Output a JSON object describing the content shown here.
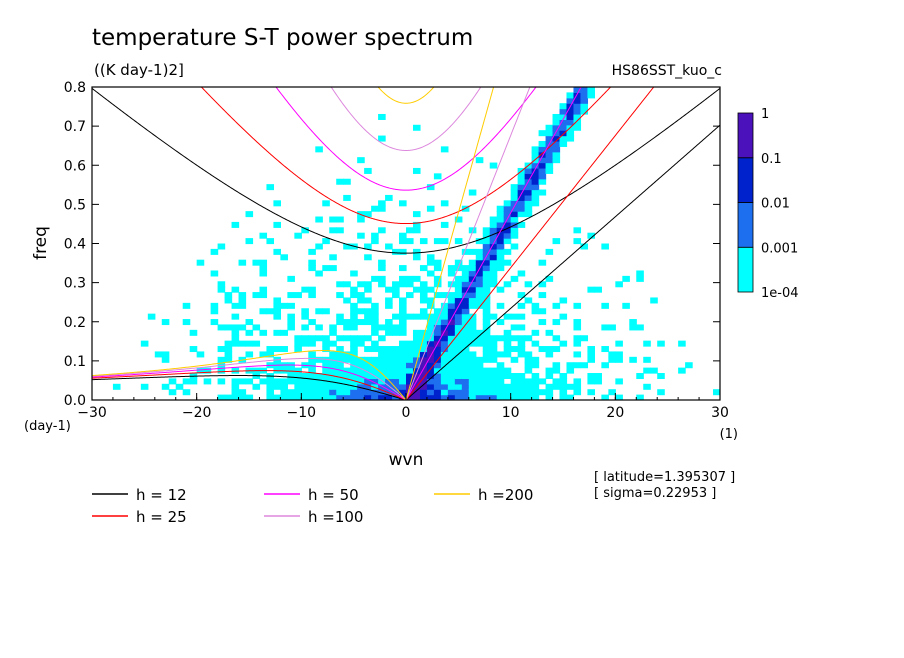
{
  "chart_data": {
    "type": "heatmap",
    "title": "temperature S-T power spectrum",
    "subtitle": "((K day-1)2]",
    "run_label": "HS86SST_kuo_c",
    "xlabel": "wvn",
    "ylabel": "freq",
    "x_unit": "(1)",
    "y_unit": "(day-1)",
    "xlim": [
      -30,
      30
    ],
    "ylim": [
      0,
      0.8
    ],
    "x_ticks": [
      -30,
      -20,
      -10,
      0,
      10,
      20,
      30
    ],
    "x_tick_labels": [
      "−30",
      "−20",
      "−10",
      "0",
      "10",
      "20",
      "30"
    ],
    "y_ticks": [
      0,
      0.1,
      0.2,
      0.3,
      0.4,
      0.5,
      0.6,
      0.7,
      0.8
    ],
    "y_tick_labels": [
      "0.0",
      "0.1",
      "0.2",
      "0.3",
      "0.4",
      "0.5",
      "0.6",
      "0.7",
      "0.8"
    ],
    "colorbar": {
      "levels": [
        "1e-04",
        "0.001",
        "0.01",
        "0.1",
        "1"
      ],
      "colors": [
        "#00ffff",
        "#1e6ef0",
        "#0022cc",
        "#4b12bb"
      ]
    },
    "dispersion_curves": [
      {
        "name": "h = 12",
        "equivalent_depth": 12,
        "color": "#000000"
      },
      {
        "name": "h = 25",
        "equivalent_depth": 25,
        "color": "#ff0000"
      },
      {
        "name": "h = 50",
        "equivalent_depth": 50,
        "color": "#ff00ff"
      },
      {
        "name": "h =100",
        "equivalent_depth": 100,
        "color": "#dd88dd"
      },
      {
        "name": "h =200",
        "equivalent_depth": 200,
        "color": "#ffcc00"
      }
    ],
    "annotations": [
      "[ latitude=1.395307 ]",
      "[ sigma=0.22953 ]"
    ]
  }
}
